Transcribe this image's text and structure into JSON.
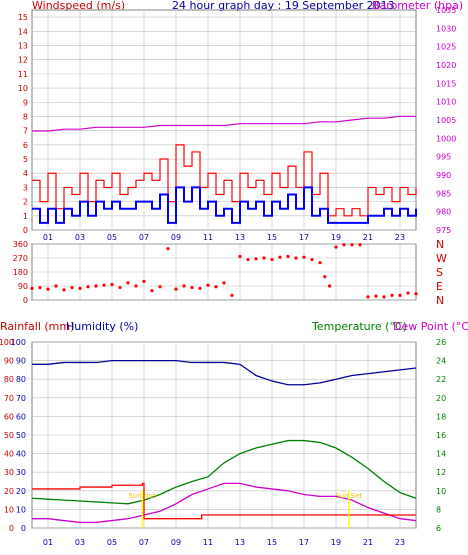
{
  "header": {
    "left_title": "Windspeed (m/s)",
    "center_title": "24 hour graph day : 19 September 2013",
    "right_title": "Barometer (hpa)"
  },
  "colors": {
    "wind_gust": "#ff0000",
    "wind_avg": "#0000ff",
    "barometer": "#cc00cc",
    "direction": "#ff0000",
    "temperature": "#008000",
    "dew_point": "#cc00cc",
    "humidity": "#000099",
    "rainfall": "#ff0000",
    "grid": "#c0c0c0",
    "axis_red": "#cc0000",
    "axis_blue": "#0000aa",
    "axis_green": "#008000",
    "axis_magenta": "#cc00cc",
    "marker": "#ffff00"
  },
  "lower_header": {
    "rain_label": "Rainfall (mm)",
    "humidity_label": "Humidity (%)",
    "temperature_label": "Temperature (°C)",
    "dew_point_label": "Dew Point (°C)"
  },
  "marker_labels": [
    "Sun rise",
    "Sun Set"
  ],
  "chart_data": [
    {
      "type": "line",
      "x_ticks": [
        "01",
        "03",
        "05",
        "07",
        "09",
        "11",
        "13",
        "15",
        "17",
        "19",
        "21",
        "23"
      ],
      "x_range_hours": [
        0,
        24
      ],
      "left_axis": {
        "ticks": [
          "0",
          "1",
          "2",
          "3",
          "4",
          "5",
          "6",
          "7",
          "8",
          "9",
          "10",
          "11",
          "12",
          "13",
          "14",
          "15"
        ],
        "range": [
          0,
          15.5
        ]
      },
      "right_axis": {
        "ticks": [
          "975",
          "980",
          "985",
          "990",
          "995",
          "1000",
          "1005",
          "1010",
          "1015",
          "1020",
          "1025",
          "1030",
          "1035"
        ],
        "range": [
          975,
          1035
        ]
      },
      "series": [
        {
          "hours": [
            0,
            1,
            2,
            3,
            4,
            5,
            6,
            7,
            8,
            9,
            10,
            11,
            12,
            13,
            14,
            15,
            16,
            17,
            18,
            19,
            20,
            21,
            22,
            23,
            24
          ],
          "values": [
            1002,
            1002,
            1002.5,
            1002.5,
            1003,
            1003,
            1003,
            1003,
            1003.5,
            1003.5,
            1003.5,
            1003.5,
            1003.5,
            1004,
            1004,
            1004,
            1004,
            1004,
            1004.5,
            1004.5,
            1005,
            1005.5,
            1005.5,
            1006,
            1006
          ]
        },
        {
          "hours": [
            0,
            0.5,
            1,
            1.5,
            2,
            2.5,
            3,
            3.5,
            4,
            4.5,
            5,
            5.5,
            6,
            6.5,
            7,
            7.5,
            8,
            8.5,
            9,
            9.5,
            10,
            10.5,
            11,
            11.5,
            12,
            12.5,
            13,
            13.5,
            14,
            14.5,
            15,
            15.5,
            16,
            16.5,
            17,
            17.5,
            18,
            18.5,
            19,
            19.5,
            20,
            20.5,
            21,
            21.5,
            22,
            22.5,
            23,
            23.5,
            24
          ],
          "values": [
            3.5,
            2,
            4,
            1.5,
            3,
            2.5,
            4,
            2,
            3.5,
            3,
            4,
            2.5,
            3,
            3.5,
            4,
            3.5,
            5,
            2,
            6,
            4.5,
            5.5,
            3,
            4,
            2.5,
            3.5,
            2,
            4,
            3,
            3.5,
            2.5,
            4,
            3,
            4.5,
            3,
            5.5,
            2.5,
            4,
            1,
            1.5,
            1,
            1.5,
            1,
            3,
            2.5,
            3,
            2,
            3,
            2.5,
            3
          ]
        },
        {
          "hours": [
            0,
            0.5,
            1,
            1.5,
            2,
            2.5,
            3,
            3.5,
            4,
            4.5,
            5,
            5.5,
            6,
            6.5,
            7,
            7.5,
            8,
            8.5,
            9,
            9.5,
            10,
            10.5,
            11,
            11.5,
            12,
            12.5,
            13,
            13.5,
            14,
            14.5,
            15,
            15.5,
            16,
            16.5,
            17,
            17.5,
            18,
            18.5,
            19,
            19.5,
            20,
            20.5,
            21,
            21.5,
            22,
            22.5,
            23,
            23.5,
            24
          ],
          "values": [
            1.5,
            0.5,
            1.5,
            0.5,
            1.5,
            1,
            2,
            1,
            2,
            1.5,
            2,
            1.5,
            1.5,
            2,
            2,
            1.5,
            2.5,
            0.5,
            3,
            2,
            3,
            1.5,
            2,
            1,
            1.5,
            0.5,
            2,
            1.5,
            2,
            1,
            2,
            1.5,
            2.5,
            1.5,
            3,
            1,
            1.5,
            0.5,
            0.5,
            0.5,
            0.5,
            0.5,
            1,
            1,
            1.5,
            1,
            1.5,
            1,
            1.5
          ]
        }
      ]
    },
    {
      "type": "scatter",
      "y_ticks_left": [
        "360",
        "270",
        "180",
        "90",
        "0"
      ],
      "y_ticks_right": [
        "N",
        "W",
        "S",
        "E",
        "N"
      ],
      "y_range": [
        0,
        360
      ],
      "points_hours": [
        0,
        0.5,
        1,
        1.5,
        2,
        2.5,
        3,
        3.5,
        4,
        4.5,
        5,
        5.5,
        6,
        6.5,
        7,
        7.5,
        8,
        8.5,
        9,
        9.5,
        10,
        10.5,
        11,
        11.5,
        12,
        12.5,
        13,
        13.5,
        14,
        14.5,
        15,
        15.5,
        16,
        16.5,
        17,
        17.5,
        18,
        18.3,
        18.6,
        19,
        19.5,
        20,
        20.5,
        21,
        21.5,
        22,
        22.5,
        23,
        23.5,
        24
      ],
      "points_deg": [
        75,
        80,
        70,
        90,
        65,
        80,
        75,
        85,
        90,
        95,
        100,
        80,
        110,
        90,
        120,
        60,
        85,
        330,
        70,
        90,
        80,
        75,
        95,
        85,
        110,
        30,
        280,
        260,
        265,
        270,
        260,
        275,
        280,
        270,
        275,
        260,
        240,
        150,
        90,
        340,
        355,
        355,
        355,
        20,
        25,
        20,
        30,
        30,
        45,
        40
      ]
    },
    {
      "type": "line",
      "x_ticks": [
        "01",
        "03",
        "05",
        "07",
        "09",
        "11",
        "13",
        "15",
        "17",
        "19",
        "21",
        "23"
      ],
      "x_range_hours": [
        0,
        24
      ],
      "left_axis": {
        "ticks": [
          "0",
          "10",
          "20",
          "30",
          "40",
          "50",
          "60",
          "70",
          "80",
          "90",
          "100"
        ],
        "range": [
          0,
          100
        ]
      },
      "right_axis": {
        "ticks": [
          "6",
          "8",
          "10",
          "12",
          "14",
          "16",
          "18",
          "20",
          "22",
          "24",
          "26"
        ],
        "range": [
          6,
          26
        ]
      },
      "series": [
        {
          "hours": [
            0,
            1,
            2,
            3,
            4,
            5,
            6,
            7,
            8,
            9,
            10,
            11,
            12,
            13,
            13.5,
            14,
            15,
            16,
            17,
            18,
            19,
            20,
            21,
            22,
            23,
            24
          ],
          "values": [
            88,
            88,
            89,
            89,
            89,
            90,
            90,
            90,
            90,
            90,
            89,
            89,
            89,
            88,
            85,
            82,
            79,
            77,
            77,
            78,
            80,
            82,
            83,
            84,
            85,
            86
          ]
        },
        {
          "hours": [
            0,
            1,
            2,
            3,
            4,
            5,
            6,
            7,
            8,
            9,
            10,
            11,
            12,
            13,
            14,
            15,
            16,
            17,
            18,
            19,
            20,
            21,
            22,
            23,
            24
          ],
          "values": [
            9.2,
            9.1,
            9.0,
            8.9,
            8.8,
            8.7,
            8.6,
            9.0,
            9.6,
            10.4,
            11.0,
            11.5,
            13.0,
            14.0,
            14.6,
            15.0,
            15.4,
            15.4,
            15.2,
            14.6,
            13.6,
            12.4,
            11.0,
            9.8,
            9.2
          ]
        },
        {
          "hours": [
            0,
            1,
            2,
            3,
            4,
            5,
            6,
            7,
            8,
            9,
            10,
            11,
            12,
            13,
            14,
            15,
            16,
            17,
            18,
            19,
            20,
            21,
            22,
            23,
            24
          ],
          "values": [
            7.0,
            7.0,
            6.8,
            6.6,
            6.6,
            6.8,
            7.0,
            7.4,
            7.8,
            8.6,
            9.6,
            10.2,
            10.8,
            10.8,
            10.4,
            10.2,
            10.0,
            9.6,
            9.4,
            9.4,
            9.0,
            8.2,
            7.6,
            7.0,
            6.8
          ]
        },
        {
          "hours": [
            0,
            1,
            2,
            3,
            4,
            5,
            6,
            6.9,
            7,
            9,
            10.5,
            10.6,
            13,
            16,
            18,
            20,
            22,
            24
          ],
          "values": [
            21,
            21,
            21,
            22,
            22,
            23,
            23,
            24,
            5,
            5,
            5,
            7,
            7,
            7,
            7,
            7,
            7,
            7
          ]
        }
      ]
    }
  ]
}
